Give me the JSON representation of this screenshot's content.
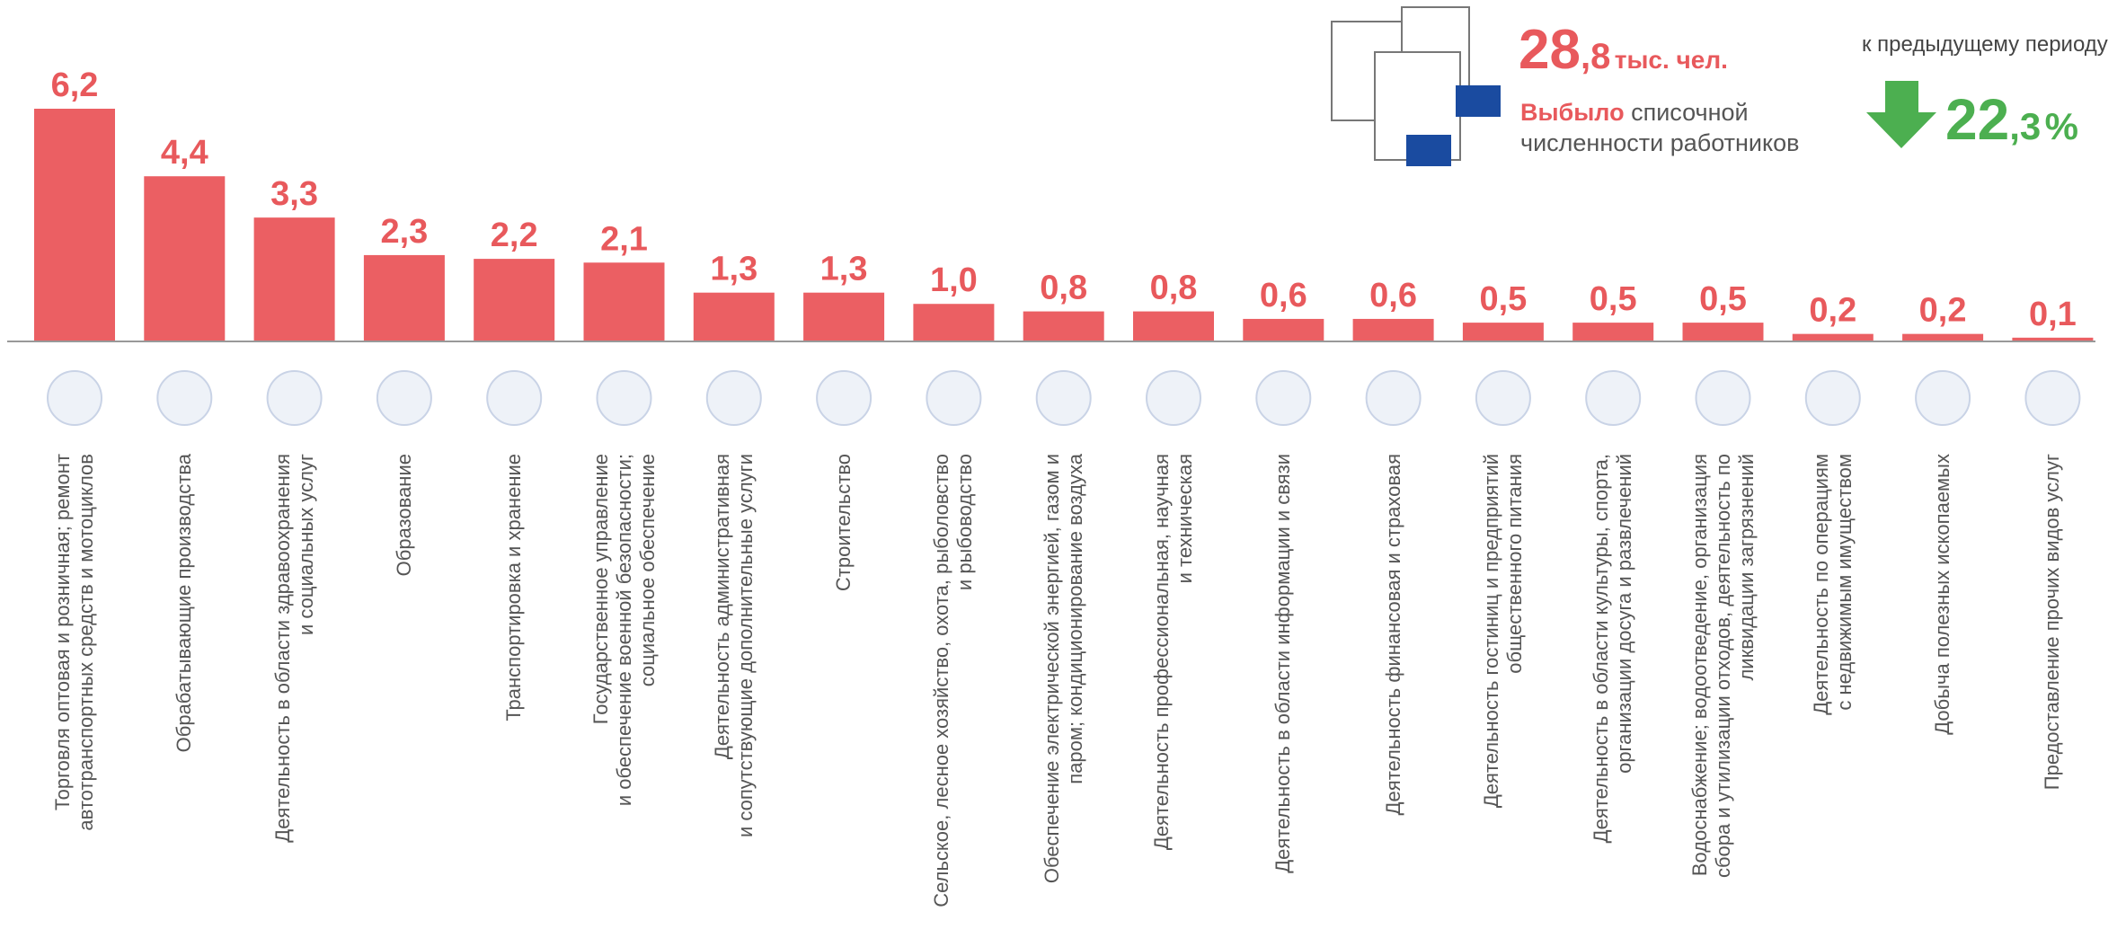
{
  "header": {
    "total_int": "28",
    "total_frac": ",8",
    "total_unit": "тыс. чел.",
    "left_word": "Выбыло",
    "left_rest": "списочной",
    "left_line2": "численности работников",
    "compare_label": "к предыдущему периоду",
    "change_int": "22",
    "change_frac": ",3",
    "change_unit": "%"
  },
  "chart_data": {
    "type": "bar",
    "color": "#eb5f63",
    "label_color": "#e8595c",
    "ylim": [
      0,
      6.2
    ],
    "categories": [
      "Торговля оптовая и розничная; ремонт\nавтотранспортных средств и мотоциклов",
      "Обрабатывающие производства",
      "Деятельность в области здравоохранения\nи социальных услуг",
      "Образование",
      "Транспортировка и хранение",
      "Государственное управление\nи обеспечение военной безопасности;\nсоциальное обеспечение",
      "Деятельность административная\nи сопутствующие дополнительные услуги",
      "Строительство",
      "Сельское, лесное хозяйство, охота, рыболовство\nи рыбоводство",
      "Обеспечение электрической энергией, газом и\nпаром; кондиционирование воздуха",
      "Деятельность  профессиональная, научная\nи техническая",
      "Деятельность в области информации и связи",
      "Деятельность финансовая и страховая",
      "Деятельность гостиниц и предприятий\nобщественного питания",
      "Деятельность в области культуры, спорта,\nорганизации досуга и развлечений",
      "Водоснабжение;  водоотведение, организация\nсбора и утилизации отходов, деятельность по\nликвидации загрязнений",
      "Деятельность по операциям\nс недвижимым имуществом",
      "Добыча полезных ископаемых",
      "Предоставление прочих видов услуг"
    ],
    "values": [
      6.2,
      4.4,
      3.3,
      2.3,
      2.2,
      2.1,
      1.3,
      1.3,
      1.0,
      0.8,
      0.8,
      0.6,
      0.6,
      0.5,
      0.5,
      0.5,
      0.2,
      0.2,
      0.1
    ],
    "value_labels": [
      "6,2",
      "4,4",
      "3,3",
      "2,3",
      "2,2",
      "2,1",
      "1,3",
      "1,3",
      "1,0",
      "0,8",
      "0,8",
      "0,6",
      "0,6",
      "0,5",
      "0,5",
      "0,5",
      "0,2",
      "0,2",
      "0,1"
    ]
  }
}
